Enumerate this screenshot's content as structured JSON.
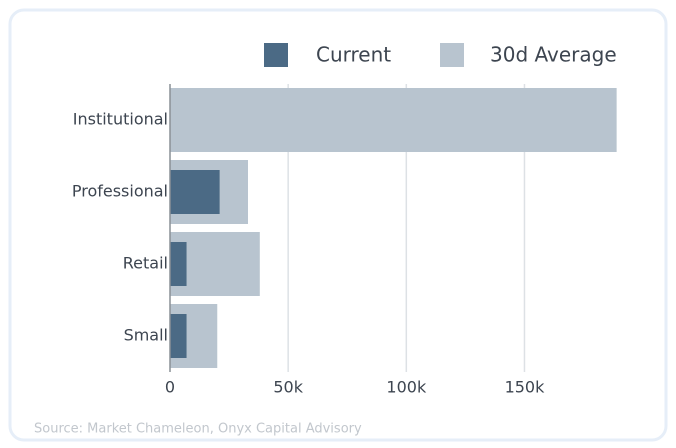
{
  "chart_data": {
    "type": "bar",
    "orientation": "horizontal",
    "categories": [
      "Institutional",
      "Professional",
      "Retail",
      "Small"
    ],
    "series": [
      {
        "name": "Current",
        "color": "#4b6a85",
        "values": [
          0,
          21000,
          7000,
          7000
        ]
      },
      {
        "name": "30d Average",
        "color": "#b8c4cf",
        "values": [
          189000,
          33000,
          38000,
          20000
        ]
      }
    ],
    "xlim": [
      0,
      190000
    ],
    "xticks": [
      0,
      {
        "value": 50000,
        "label": "50k"
      },
      {
        "value": 100000,
        "label": "100k"
      },
      {
        "value": 150000,
        "label": "150k"
      }
    ],
    "grid": true,
    "legend": "top-right",
    "source": "Source: Market Chameleon, Onyx Capital Advisory"
  }
}
